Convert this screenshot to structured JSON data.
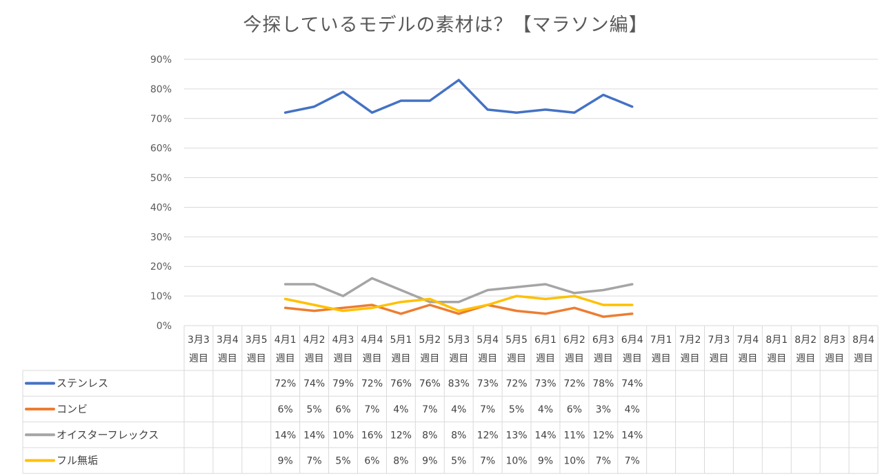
{
  "chart_data": {
    "type": "line",
    "title": "今探しているモデルの素材は？【マラソン編】",
    "ylim": [
      0,
      90
    ],
    "yticks": [
      "0%",
      "10%",
      "20%",
      "30%",
      "40%",
      "50%",
      "60%",
      "70%",
      "80%",
      "90%"
    ],
    "categories": [
      [
        "3月3",
        "週目"
      ],
      [
        "3月4",
        "週目"
      ],
      [
        "3月5",
        "週目"
      ],
      [
        "4月1",
        "週目"
      ],
      [
        "4月2",
        "週目"
      ],
      [
        "4月3",
        "週目"
      ],
      [
        "4月4",
        "週目"
      ],
      [
        "5月1",
        "週目"
      ],
      [
        "5月2",
        "週目"
      ],
      [
        "5月3",
        "週目"
      ],
      [
        "5月4",
        "週目"
      ],
      [
        "5月5",
        "週目"
      ],
      [
        "6月1",
        "週目"
      ],
      [
        "6月2",
        "週目"
      ],
      [
        "6月3",
        "週目"
      ],
      [
        "6月4",
        "週目"
      ],
      [
        "7月1",
        "週目"
      ],
      [
        "7月2",
        "週目"
      ],
      [
        "7月3",
        "週目"
      ],
      [
        "7月4",
        "週目"
      ],
      [
        "8月1",
        "週目"
      ],
      [
        "8月2",
        "週目"
      ],
      [
        "8月3",
        "週目"
      ],
      [
        "8月4",
        "週目"
      ]
    ],
    "series": [
      {
        "name": "ステンレス",
        "color": "#4472C4",
        "values": [
          null,
          null,
          null,
          72,
          74,
          79,
          72,
          76,
          76,
          83,
          73,
          72,
          73,
          72,
          78,
          74,
          null,
          null,
          null,
          null,
          null,
          null,
          null,
          null
        ],
        "labels": [
          "",
          "",
          "",
          "72%",
          "74%",
          "79%",
          "72%",
          "76%",
          "76%",
          "83%",
          "73%",
          "72%",
          "73%",
          "72%",
          "78%",
          "74%",
          "",
          "",
          "",
          "",
          "",
          "",
          "",
          ""
        ]
      },
      {
        "name": "コンビ",
        "color": "#ED7D31",
        "values": [
          null,
          null,
          null,
          6,
          5,
          6,
          7,
          4,
          7,
          4,
          7,
          5,
          4,
          6,
          3,
          4,
          null,
          null,
          null,
          null,
          null,
          null,
          null,
          null
        ],
        "labels": [
          "",
          "",
          "",
          "6%",
          "5%",
          "6%",
          "7%",
          "4%",
          "7%",
          "4%",
          "7%",
          "5%",
          "4%",
          "6%",
          "3%",
          "4%",
          "",
          "",
          "",
          "",
          "",
          "",
          "",
          ""
        ]
      },
      {
        "name": "オイスターフレックス",
        "color": "#A5A5A5",
        "values": [
          null,
          null,
          null,
          14,
          14,
          10,
          16,
          12,
          8,
          8,
          12,
          13,
          14,
          11,
          12,
          14,
          null,
          null,
          null,
          null,
          null,
          null,
          null,
          null
        ],
        "labels": [
          "",
          "",
          "",
          "14%",
          "14%",
          "10%",
          "16%",
          "12%",
          "8%",
          "8%",
          "12%",
          "13%",
          "14%",
          "11%",
          "12%",
          "14%",
          "",
          "",
          "",
          "",
          "",
          "",
          "",
          ""
        ]
      },
      {
        "name": "フル無垢",
        "color": "#FFC000",
        "values": [
          null,
          null,
          null,
          9,
          7,
          5,
          6,
          8,
          9,
          5,
          7,
          10,
          9,
          10,
          7,
          7,
          null,
          null,
          null,
          null,
          null,
          null,
          null,
          null
        ],
        "labels": [
          "",
          "",
          "",
          "9%",
          "7%",
          "5%",
          "6%",
          "8%",
          "9%",
          "5%",
          "7%",
          "10%",
          "9%",
          "10%",
          "7%",
          "7%",
          "",
          "",
          "",
          "",
          "",
          "",
          "",
          ""
        ]
      }
    ],
    "grid": true,
    "legend": "data-table"
  }
}
